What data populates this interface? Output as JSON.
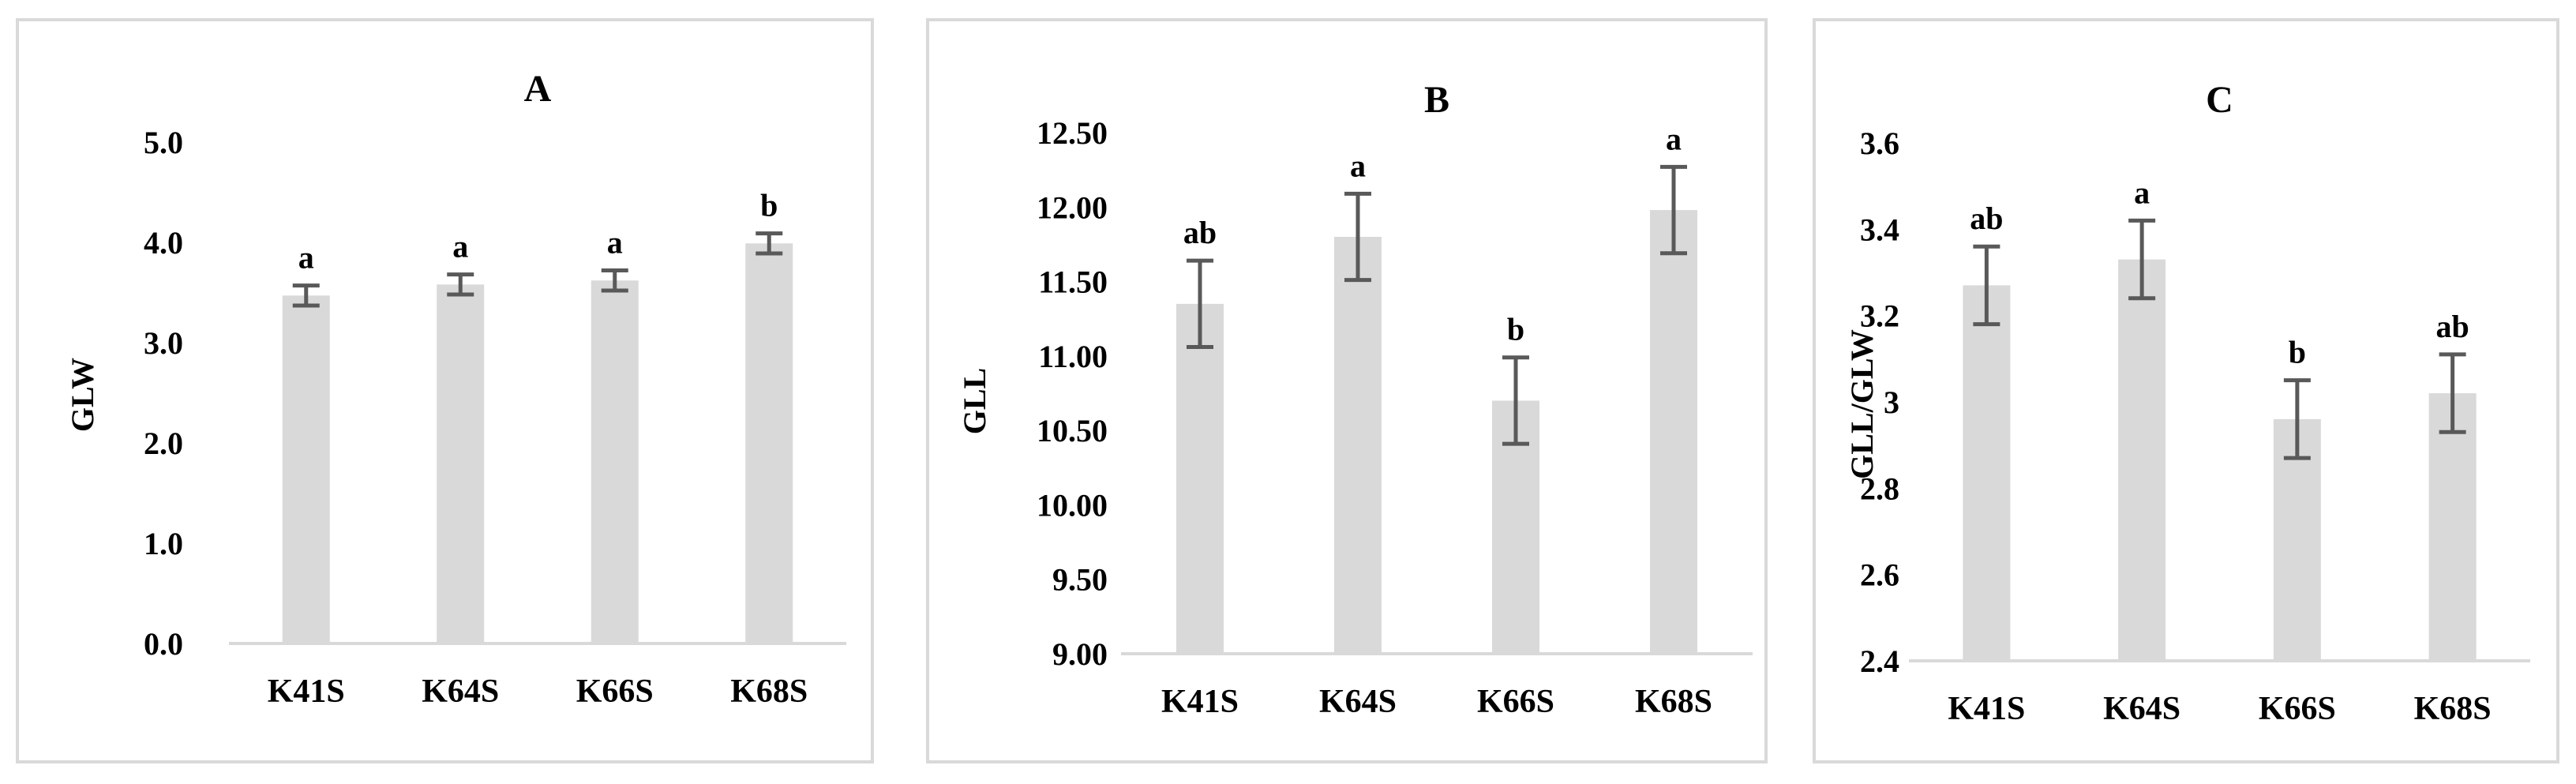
{
  "chart_data": [
    {
      "type": "bar",
      "title": "A",
      "ylabel": "GLW",
      "xlabel": "",
      "categories": [
        "K41S",
        "K64S",
        "K66S",
        "K68S"
      ],
      "values": [
        3.47,
        3.58,
        3.62,
        3.99
      ],
      "errors": [
        0.1,
        0.1,
        0.1,
        0.1
      ],
      "letters": [
        "a",
        "a",
        "a",
        "b"
      ],
      "ylim": [
        0,
        5
      ],
      "yticks": [
        "0.0",
        "1.0",
        "2.0",
        "3.0",
        "4.0",
        "5.0"
      ],
      "grid": false,
      "legend": "none",
      "bar_color": "#d9d9d9",
      "error_color": "#595959"
    },
    {
      "type": "bar",
      "title": "B",
      "ylabel": "GLL",
      "xlabel": "",
      "categories": [
        "K41S",
        "K64S",
        "K66S",
        "K68S"
      ],
      "values": [
        11.35,
        11.8,
        10.7,
        11.98
      ],
      "errors": [
        0.29,
        0.29,
        0.29,
        0.29
      ],
      "letters": [
        "ab",
        "a",
        "b",
        "a"
      ],
      "ylim": [
        9,
        12.5
      ],
      "yticks": [
        "9.00",
        "9.50",
        "10.00",
        "10.50",
        "11.00",
        "11.50",
        "12.00",
        "12.50"
      ],
      "grid": false,
      "legend": "none",
      "bar_color": "#d9d9d9",
      "error_color": "#595959"
    },
    {
      "type": "bar",
      "title": "C",
      "ylabel": "GLL/GLW",
      "xlabel": "",
      "categories": [
        "K41S",
        "K64S",
        "K66S",
        "K68S"
      ],
      "values": [
        3.27,
        3.33,
        2.96,
        3.02
      ],
      "errors": [
        0.09,
        0.09,
        0.09,
        0.09
      ],
      "letters": [
        "ab",
        "a",
        "b",
        "ab"
      ],
      "ylim": [
        2.4,
        3.6
      ],
      "yticks": [
        "2.4",
        "2.6",
        "2.8",
        "3",
        "3.2",
        "3.4",
        "3.6"
      ],
      "grid": false,
      "legend": "none",
      "bar_color": "#d9d9d9",
      "error_color": "#595959"
    }
  ]
}
